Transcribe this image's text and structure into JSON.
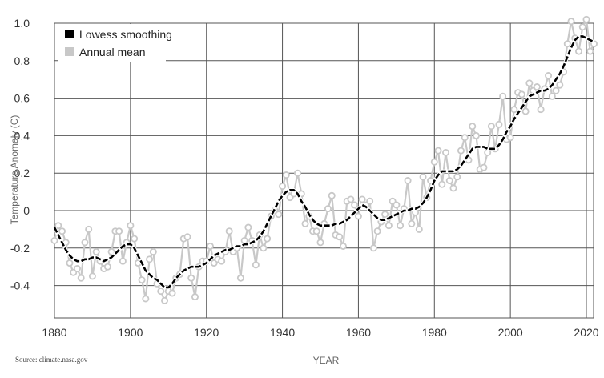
{
  "chart_data": {
    "type": "line",
    "xlabel": "YEAR",
    "ylabel": "Temperature Anomaly (C)",
    "xlim": [
      1880,
      2022
    ],
    "ylim": [
      -0.55,
      1.0
    ],
    "x_ticks": [
      1880,
      1900,
      1920,
      1940,
      1960,
      1980,
      2000,
      2020
    ],
    "y_ticks": [
      -0.4,
      -0.2,
      0,
      0.2,
      0.4,
      0.6,
      0.8,
      1.0
    ],
    "y_tick_labels": [
      "-0.4",
      "-0.2",
      "0",
      "0.2",
      "0.4",
      "0.6",
      "0.8",
      "1.0"
    ],
    "grid": true,
    "legend_position": "top-left",
    "x": [
      1880,
      1881,
      1882,
      1883,
      1884,
      1885,
      1886,
      1887,
      1888,
      1889,
      1890,
      1891,
      1892,
      1893,
      1894,
      1895,
      1896,
      1897,
      1898,
      1899,
      1900,
      1901,
      1902,
      1903,
      1904,
      1905,
      1906,
      1907,
      1908,
      1909,
      1910,
      1911,
      1912,
      1913,
      1914,
      1915,
      1916,
      1917,
      1918,
      1919,
      1920,
      1921,
      1922,
      1923,
      1924,
      1925,
      1926,
      1927,
      1928,
      1929,
      1930,
      1931,
      1932,
      1933,
      1934,
      1935,
      1936,
      1937,
      1938,
      1939,
      1940,
      1941,
      1942,
      1943,
      1944,
      1945,
      1946,
      1947,
      1948,
      1949,
      1950,
      1951,
      1952,
      1953,
      1954,
      1955,
      1956,
      1957,
      1958,
      1959,
      1960,
      1961,
      1962,
      1963,
      1964,
      1965,
      1966,
      1967,
      1968,
      1969,
      1970,
      1971,
      1972,
      1973,
      1974,
      1975,
      1976,
      1977,
      1978,
      1979,
      1980,
      1981,
      1982,
      1983,
      1984,
      1985,
      1986,
      1987,
      1988,
      1989,
      1990,
      1991,
      1992,
      1993,
      1994,
      1995,
      1996,
      1997,
      1998,
      1999,
      2000,
      2001,
      2002,
      2003,
      2004,
      2005,
      2006,
      2007,
      2008,
      2009,
      2010,
      2011,
      2012,
      2013,
      2014,
      2015,
      2016,
      2017,
      2018,
      2019,
      2020,
      2021,
      2022
    ],
    "series": [
      {
        "name": "Lowess smoothing",
        "color": "#000000",
        "values": [
          -0.09,
          -0.13,
          -0.17,
          -0.21,
          -0.24,
          -0.26,
          -0.27,
          -0.27,
          -0.26,
          -0.26,
          -0.25,
          -0.25,
          -0.26,
          -0.27,
          -0.26,
          -0.25,
          -0.23,
          -0.21,
          -0.19,
          -0.18,
          -0.18,
          -0.2,
          -0.24,
          -0.28,
          -0.32,
          -0.34,
          -0.36,
          -0.37,
          -0.39,
          -0.41,
          -0.41,
          -0.39,
          -0.36,
          -0.34,
          -0.32,
          -0.31,
          -0.3,
          -0.3,
          -0.3,
          -0.29,
          -0.28,
          -0.26,
          -0.24,
          -0.23,
          -0.22,
          -0.21,
          -0.21,
          -0.2,
          -0.19,
          -0.19,
          -0.18,
          -0.18,
          -0.17,
          -0.16,
          -0.14,
          -0.11,
          -0.07,
          -0.03,
          0.01,
          0.05,
          0.08,
          0.1,
          0.11,
          0.11,
          0.09,
          0.05,
          0.02,
          -0.02,
          -0.05,
          -0.07,
          -0.08,
          -0.08,
          -0.08,
          -0.08,
          -0.07,
          -0.07,
          -0.06,
          -0.05,
          -0.03,
          -0.01,
          0.01,
          0.03,
          0.02,
          0.0,
          -0.02,
          -0.04,
          -0.05,
          -0.05,
          -0.04,
          -0.03,
          -0.02,
          -0.01,
          0.0,
          0.0,
          0.01,
          0.01,
          0.02,
          0.04,
          0.07,
          0.11,
          0.16,
          0.19,
          0.21,
          0.21,
          0.21,
          0.21,
          0.22,
          0.24,
          0.27,
          0.3,
          0.33,
          0.34,
          0.34,
          0.34,
          0.33,
          0.33,
          0.33,
          0.35,
          0.38,
          0.42,
          0.45,
          0.49,
          0.52,
          0.55,
          0.58,
          0.61,
          0.62,
          0.63,
          0.64,
          0.64,
          0.65,
          0.67,
          0.7,
          0.73,
          0.77,
          0.82,
          0.87,
          0.91,
          0.93,
          0.93,
          0.92,
          0.91,
          0.9
        ]
      },
      {
        "name": "Annual mean",
        "color": "#c8c8c8",
        "values": [
          -0.16,
          -0.08,
          -0.11,
          -0.17,
          -0.28,
          -0.33,
          -0.31,
          -0.36,
          -0.17,
          -0.1,
          -0.35,
          -0.22,
          -0.27,
          -0.31,
          -0.3,
          -0.22,
          -0.11,
          -0.11,
          -0.27,
          -0.17,
          -0.08,
          -0.15,
          -0.28,
          -0.37,
          -0.47,
          -0.26,
          -0.22,
          -0.39,
          -0.43,
          -0.48,
          -0.43,
          -0.44,
          -0.36,
          -0.34,
          -0.15,
          -0.14,
          -0.36,
          -0.46,
          -0.3,
          -0.27,
          -0.27,
          -0.19,
          -0.28,
          -0.26,
          -0.27,
          -0.22,
          -0.11,
          -0.22,
          -0.2,
          -0.36,
          -0.16,
          -0.09,
          -0.16,
          -0.29,
          -0.13,
          -0.2,
          -0.15,
          -0.03,
          -0.0,
          -0.02,
          0.13,
          0.19,
          0.07,
          0.09,
          0.2,
          0.09,
          -0.07,
          -0.03,
          -0.11,
          -0.11,
          -0.17,
          -0.07,
          0.01,
          0.08,
          -0.13,
          -0.14,
          -0.19,
          0.05,
          0.06,
          0.03,
          -0.03,
          0.06,
          0.03,
          0.05,
          -0.2,
          -0.11,
          -0.06,
          -0.02,
          -0.08,
          0.05,
          0.03,
          -0.08,
          0.01,
          0.16,
          -0.07,
          -0.01,
          -0.1,
          0.18,
          0.07,
          0.16,
          0.26,
          0.32,
          0.14,
          0.31,
          0.16,
          0.12,
          0.18,
          0.32,
          0.39,
          0.27,
          0.45,
          0.4,
          0.22,
          0.23,
          0.31,
          0.45,
          0.33,
          0.46,
          0.61,
          0.38,
          0.39,
          0.54,
          0.63,
          0.62,
          0.53,
          0.68,
          0.64,
          0.66,
          0.54,
          0.65,
          0.72,
          0.61,
          0.64,
          0.67,
          0.74,
          0.89,
          1.01,
          0.92,
          0.85,
          0.98,
          1.02,
          0.85,
          0.89
        ]
      }
    ]
  },
  "source_text": "Source: climate.nasa.gov"
}
